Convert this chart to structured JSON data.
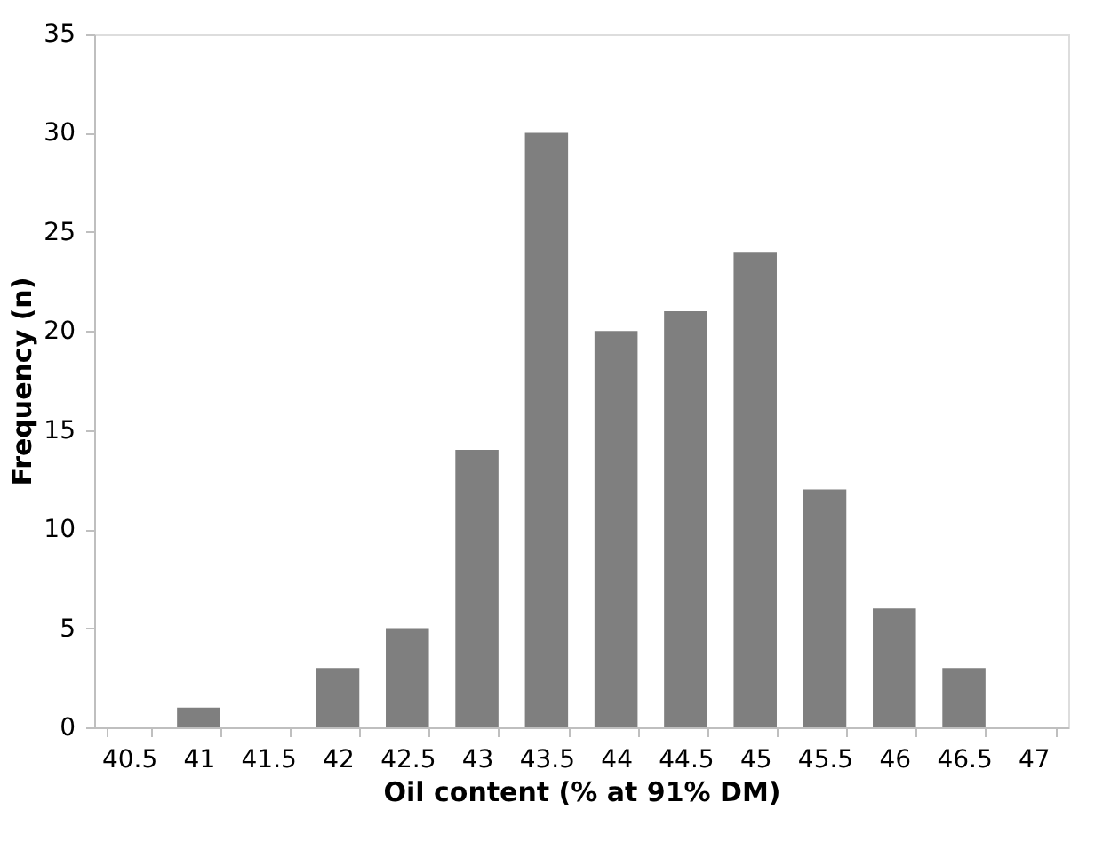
{
  "chart_data": {
    "type": "bar",
    "xlabel": "Oil content (% at 91% DM)",
    "ylabel": "Frequency (n)",
    "categories": [
      "40.5",
      "41",
      "41.5",
      "42",
      "42.5",
      "43",
      "43.5",
      "44",
      "44.5",
      "45",
      "45.5",
      "46",
      "46.5",
      "47"
    ],
    "values": [
      0,
      1,
      0,
      3,
      5,
      14,
      30,
      20,
      21,
      24,
      12,
      6,
      3,
      0
    ],
    "color": "#7f7f7f",
    "ylim": [
      0,
      35
    ],
    "yticks": [
      0,
      5,
      10,
      15,
      20,
      25,
      30,
      35
    ],
    "grid": false
  }
}
